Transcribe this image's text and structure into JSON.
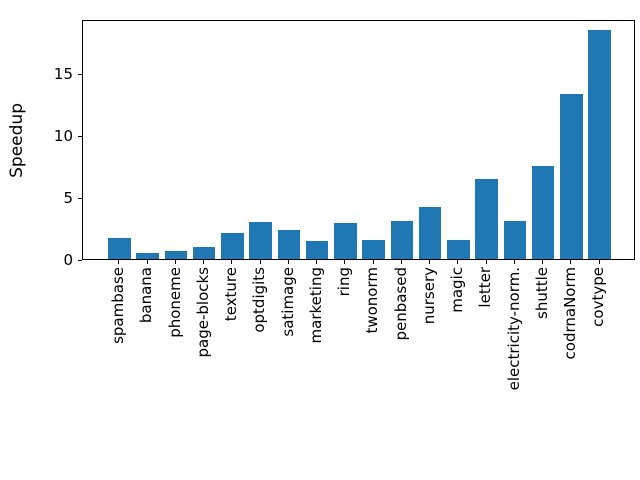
{
  "figure": {
    "background": "#ffffff"
  },
  "chart_data": {
    "type": "bar",
    "title": "",
    "xlabel": "",
    "ylabel": "Speedup",
    "categories": [
      "spambase",
      "banana",
      "phoneme",
      "page-blocks",
      "texture",
      "optdigits",
      "satimage",
      "marketing",
      "ring",
      "twonorm",
      "penbased",
      "nursery",
      "magic",
      "letter",
      "electricity-norm.",
      "shuttle",
      "codrnaNorm",
      "covtype"
    ],
    "values": [
      1.7,
      0.5,
      0.65,
      0.95,
      2.1,
      3.0,
      2.35,
      1.45,
      2.9,
      1.55,
      3.1,
      4.2,
      1.5,
      6.5,
      3.05,
      7.5,
      13.35,
      18.5
    ],
    "yticks": [
      0,
      5,
      10,
      15
    ],
    "ylim": [
      0,
      19.4
    ],
    "xlim": [
      -1.29,
      18.29
    ],
    "bar_width": 0.8,
    "bar_color": "#1f77b4",
    "axis_color": "#000000",
    "grid": false,
    "legend": null,
    "x_tick_rotation": 90
  }
}
